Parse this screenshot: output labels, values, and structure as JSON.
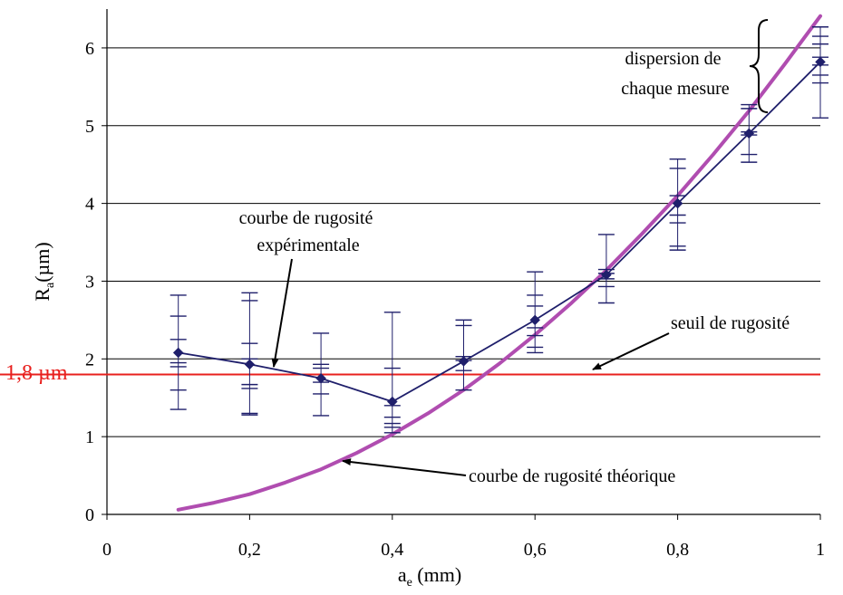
{
  "chart_data": {
    "type": "line",
    "x_ticks": [
      {
        "value": 0,
        "label": "0"
      },
      {
        "value": 0.2,
        "label": "0,2"
      },
      {
        "value": 0.4,
        "label": "0,4"
      },
      {
        "value": 0.6,
        "label": "0,6"
      },
      {
        "value": 0.8,
        "label": "0,8"
      },
      {
        "value": 1.0,
        "label": "1"
      }
    ],
    "y_ticks": [
      {
        "value": 0,
        "label": "0"
      },
      {
        "value": 1,
        "label": "1"
      },
      {
        "value": 2,
        "label": "2"
      },
      {
        "value": 3,
        "label": "3"
      },
      {
        "value": 4,
        "label": "4"
      },
      {
        "value": 5,
        "label": "5"
      },
      {
        "value": 6,
        "label": "6"
      }
    ],
    "xlabel_main": "a",
    "xlabel_sub": "e",
    "xlabel_unit": " (mm)",
    "ylabel_main": "R",
    "ylabel_sub": "a",
    "ylabel_unit": "(µm)",
    "xlim": [
      0,
      1.0
    ],
    "ylim": [
      0,
      6.5
    ],
    "grid": "horizontal",
    "series": [
      {
        "key": "experimental",
        "color": "#1f1f6b",
        "marker": "diamond",
        "x": [
          0.1,
          0.2,
          0.3,
          0.4,
          0.5,
          0.6,
          0.7,
          0.8,
          0.9,
          1.0
        ],
        "y": [
          2.08,
          1.93,
          1.75,
          1.45,
          1.97,
          2.5,
          3.08,
          4.0,
          4.9,
          5.82
        ],
        "error_ticks": [
          [
            1.35,
            1.6,
            1.9,
            1.95,
            2.25,
            2.55,
            2.82
          ],
          [
            1.28,
            1.3,
            1.62,
            1.67,
            2.0,
            2.2,
            2.75,
            2.85
          ],
          [
            1.27,
            1.55,
            1.7,
            1.88,
            1.93,
            2.33
          ],
          [
            1.05,
            1.12,
            1.17,
            1.25,
            1.4,
            1.88,
            2.6
          ],
          [
            1.6,
            1.85,
            1.98,
            2.03,
            2.43,
            2.5
          ],
          [
            2.08,
            2.15,
            2.3,
            2.4,
            2.68,
            2.82,
            3.12
          ],
          [
            2.72,
            2.93,
            3.03,
            3.1,
            3.15,
            3.6
          ],
          [
            3.4,
            3.45,
            3.75,
            3.85,
            4.1,
            4.45,
            4.57
          ],
          [
            4.53,
            4.63,
            4.88,
            4.92,
            5.22,
            5.27
          ],
          [
            5.1,
            5.55,
            5.65,
            5.78,
            5.88,
            6.05,
            6.15,
            6.27
          ]
        ]
      },
      {
        "key": "theoretical",
        "color": "#b04db0",
        "x": [
          0.1,
          0.15,
          0.2,
          0.25,
          0.3,
          0.35,
          0.4,
          0.45,
          0.5,
          0.55,
          0.6,
          0.65,
          0.7,
          0.75,
          0.8,
          0.85,
          0.9,
          0.95,
          1.0
        ],
        "y": [
          0.06,
          0.15,
          0.26,
          0.41,
          0.58,
          0.79,
          1.03,
          1.3,
          1.6,
          1.94,
          2.31,
          2.71,
          3.14,
          3.61,
          4.1,
          4.63,
          5.19,
          5.79,
          6.41
        ]
      }
    ],
    "threshold": {
      "y": 1.8,
      "label": "1,8 µm",
      "color": "#e8201e"
    },
    "annotations": [
      {
        "key": "exp",
        "lines": [
          "courbe de rugosité",
          "expérimentale"
        ]
      },
      {
        "key": "threshold",
        "lines": [
          "seuil de rugosité"
        ]
      },
      {
        "key": "theory",
        "lines": [
          "courbe de rugosité théorique"
        ]
      },
      {
        "key": "dispersion",
        "lines": [
          "dispersion de",
          "chaque mesure"
        ]
      }
    ]
  }
}
